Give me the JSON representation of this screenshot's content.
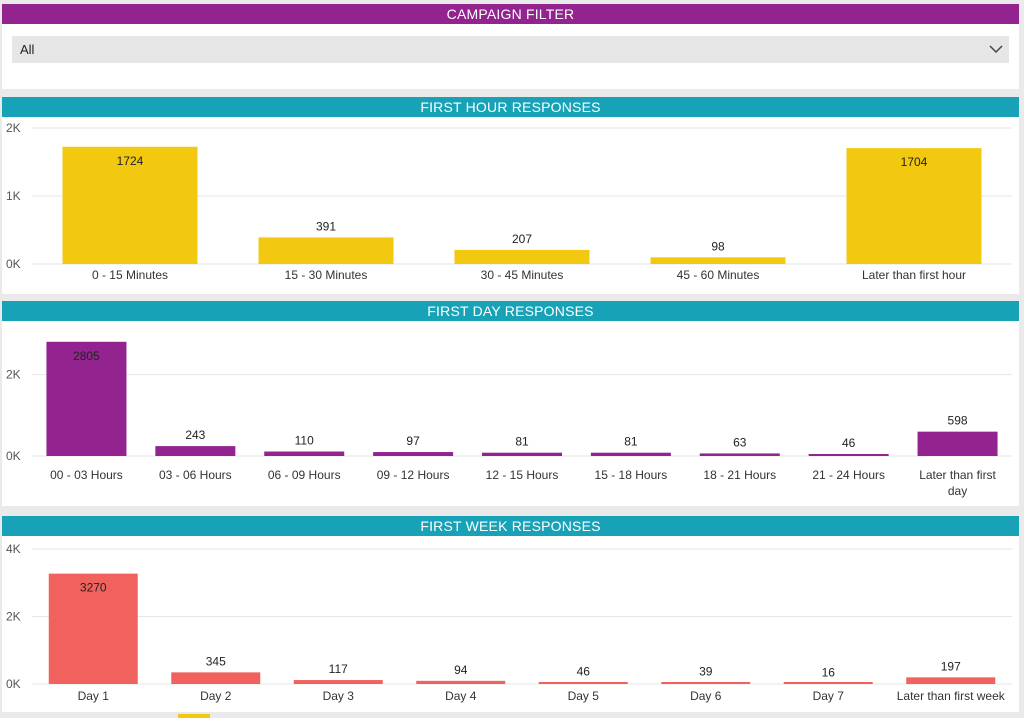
{
  "filter": {
    "title": "CAMPAIGN FILTER",
    "selected": "All"
  },
  "colors": {
    "filter_header": "#93238f",
    "chart_header": "#17a2b8",
    "hour_bars": "#f2c811",
    "day_bars": "#93238f",
    "week_bars": "#f1625e"
  },
  "chart_data": [
    {
      "type": "bar",
      "title": "FIRST HOUR RESPONSES",
      "categories": [
        "0 - 15 Minutes",
        "15 - 30 Minutes",
        "30 - 45 Minutes",
        "45 - 60 Minutes",
        "Later than first hour"
      ],
      "values": [
        1724,
        391,
        207,
        98,
        1704
      ],
      "yticks": [
        {
          "v": 0,
          "label": "0K"
        },
        {
          "v": 1000,
          "label": "1K"
        },
        {
          "v": 2000,
          "label": "2K"
        }
      ],
      "ylim": [
        0,
        2000
      ],
      "grid": true,
      "color": "#f2c811"
    },
    {
      "type": "bar",
      "title": "FIRST DAY RESPONSES",
      "categories": [
        "00 - 03 Hours",
        "03 - 06 Hours",
        "06 - 09 Hours",
        "09 - 12 Hours",
        "12 - 15 Hours",
        "15 - 18 Hours",
        "18 - 21 Hours",
        "21 - 24 Hours",
        "Later than first day"
      ],
      "values": [
        2805,
        243,
        110,
        97,
        81,
        81,
        63,
        46,
        598
      ],
      "yticks": [
        {
          "v": 0,
          "label": "0K"
        },
        {
          "v": 2000,
          "label": "2K"
        }
      ],
      "ylim": [
        0,
        2800
      ],
      "grid": true,
      "color": "#93238f"
    },
    {
      "type": "bar",
      "title": "FIRST WEEK RESPONSES",
      "categories": [
        "Day 1",
        "Day 2",
        "Day 3",
        "Day 4",
        "Day 5",
        "Day 6",
        "Day 7",
        "Later than first week"
      ],
      "values": [
        3270,
        345,
        117,
        94,
        46,
        39,
        16,
        197
      ],
      "yticks": [
        {
          "v": 0,
          "label": "0K"
        },
        {
          "v": 2000,
          "label": "2K"
        },
        {
          "v": 4000,
          "label": "4K"
        }
      ],
      "ylim": [
        0,
        4000
      ],
      "grid": true,
      "color": "#f1625e"
    }
  ]
}
